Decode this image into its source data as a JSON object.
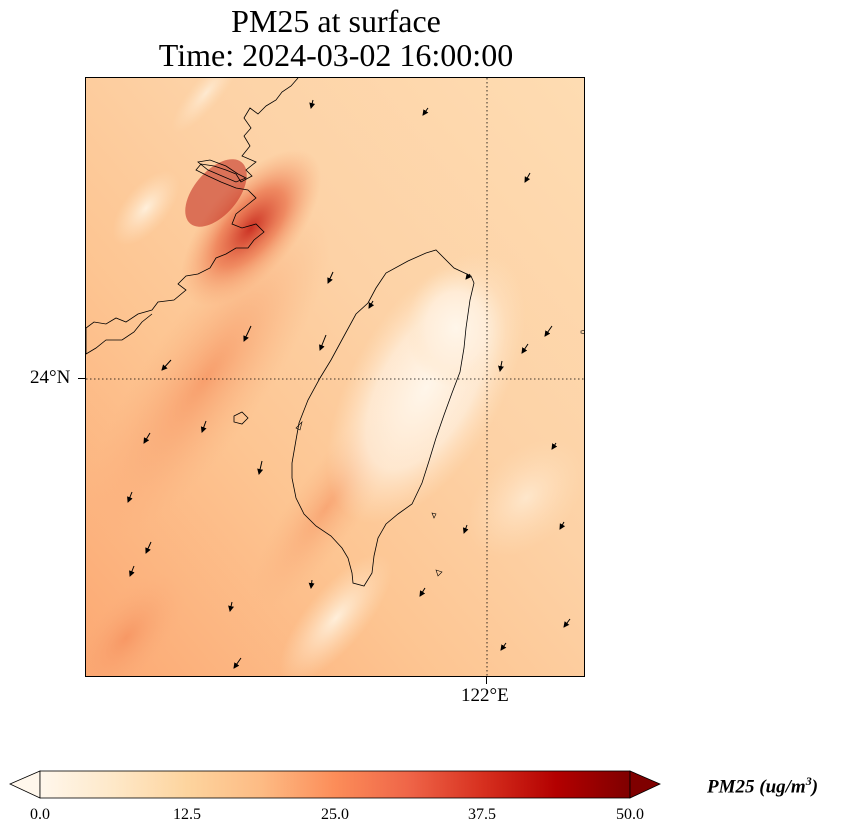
{
  "title_line1": "PM25 at surface",
  "title_line2": "Time: 2024-03-02 16:00:00",
  "map": {
    "lat_labels": [
      "24°N"
    ],
    "lon_labels": [
      "122°E"
    ],
    "wind_vectors": "pointing south-southwest",
    "colors": {
      "background_low": "#fff3e0",
      "background_mid": "#fdd0a2",
      "high": "#e34a33",
      "max": "#b30000"
    }
  },
  "colorbar": {
    "tick_labels": [
      "0.0",
      "12.5",
      "25.0",
      "37.5",
      "50.0"
    ],
    "label_text": "PM25 (ug/m",
    "label_sup": "3",
    "label_close": ")",
    "colormap": "OrRd",
    "range": [
      0.0,
      50.0
    ],
    "extend": "both"
  }
}
